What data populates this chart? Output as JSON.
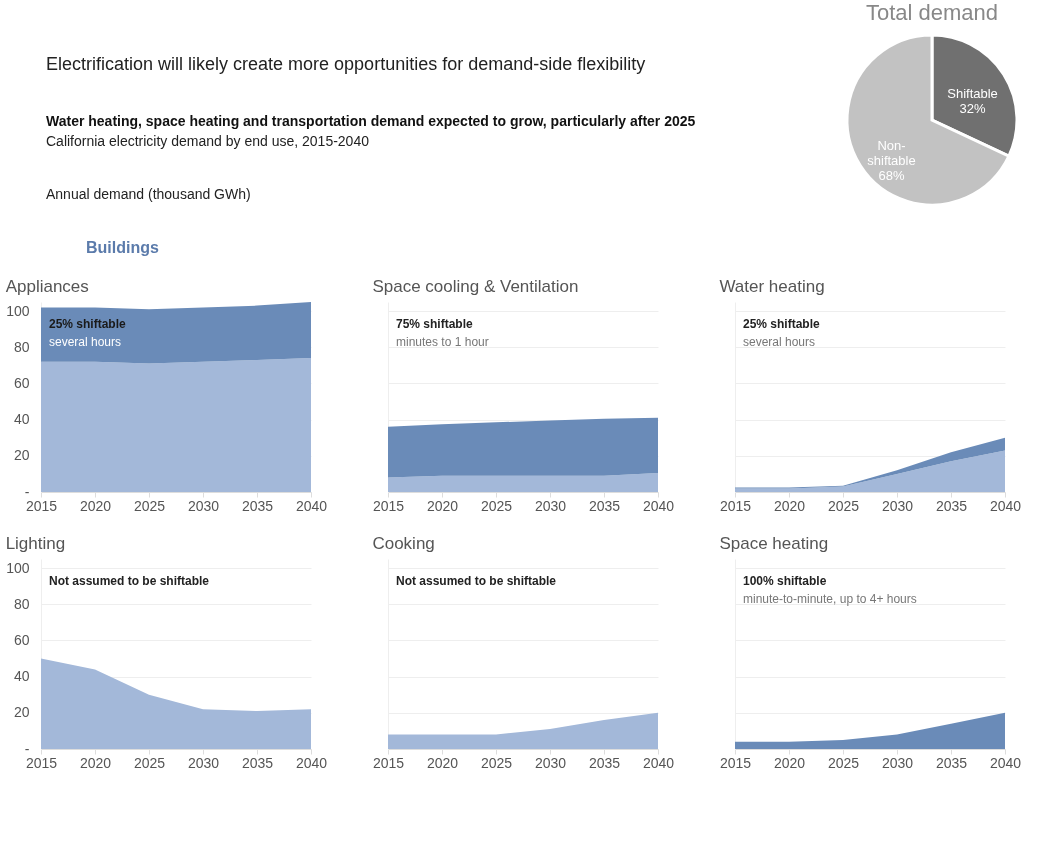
{
  "chart_data": [
    {
      "type": "other",
      "title": "Electrification will likely create more opportunities for demand-side flexibility",
      "annotations": [
        "Water heating, space heating and transportation demand expected to grow, particularly after 2025",
        "California electricity demand by end use, 2015-2040",
        "Annual demand (thousand GWh)",
        "Buildings"
      ]
    },
    {
      "type": "pie",
      "title": "Total demand",
      "categories": [
        "Shiftable",
        "Non-shiftable"
      ],
      "values": [
        32,
        68
      ],
      "colors": [
        "#707070",
        "#c2c2c2"
      ],
      "value_labels": [
        "32%",
        "68%"
      ]
    },
    {
      "type": "area",
      "title": "Appliances",
      "stacked": true,
      "x": [
        2015,
        2020,
        2025,
        2030,
        2035,
        2040
      ],
      "xlim": [
        2015,
        2040
      ],
      "xticks": [
        2015,
        2020,
        2025,
        2030,
        2035,
        2040
      ],
      "ylim": [
        0,
        105
      ],
      "yticks": [
        {
          "value": 0,
          "label": "-"
        },
        20,
        40,
        60,
        80,
        100
      ],
      "grid": "y",
      "annotations": [
        "25% shiftable",
        "several hours"
      ],
      "series": [
        {
          "color": "#a3b8d9",
          "values": [
            72,
            72,
            71,
            72,
            73,
            74
          ]
        },
        {
          "color": "#6a8bb8",
          "values": [
            30,
            30,
            30,
            30,
            30,
            31
          ]
        }
      ]
    },
    {
      "type": "area",
      "title": "Space cooling & Ventilation",
      "stacked": true,
      "x": [
        2015,
        2020,
        2025,
        2030,
        2035,
        2040
      ],
      "xlim": [
        2015,
        2040
      ],
      "xticks": [
        2015,
        2020,
        2025,
        2030,
        2035,
        2040
      ],
      "ylim": [
        0,
        105
      ],
      "yticks": [
        20,
        40,
        60,
        80,
        100
      ],
      "grid": "y",
      "tick_labels": "x",
      "annotations": [
        "75% shiftable",
        "minutes to 1 hour"
      ],
      "series": [
        {
          "color": "#a3b8d9",
          "values": [
            8,
            9,
            9,
            9,
            9,
            10.5
          ]
        },
        {
          "color": "#6a8bb8",
          "values": [
            28,
            28.5,
            29.5,
            30.5,
            31.5,
            30.5
          ]
        }
      ]
    },
    {
      "type": "area",
      "title": "Water heating",
      "stacked": true,
      "x": [
        2015,
        2020,
        2025,
        2030,
        2035,
        2040
      ],
      "xlim": [
        2015,
        2040
      ],
      "xticks": [
        2015,
        2020,
        2025,
        2030,
        2035,
        2040
      ],
      "ylim": [
        0,
        105
      ],
      "yticks": [
        20,
        40,
        60,
        80,
        100
      ],
      "grid": "y",
      "tick_labels": "x",
      "annotations": [
        "25% shiftable",
        "several hours"
      ],
      "series": [
        {
          "color": "#a3b8d9",
          "values": [
            2,
            2,
            3,
            10,
            17,
            23
          ]
        },
        {
          "color": "#6a8bb8",
          "values": [
            0.5,
            0.5,
            0.5,
            2,
            5,
            7
          ]
        }
      ]
    },
    {
      "type": "area",
      "title": "Lighting",
      "stacked": true,
      "x": [
        2015,
        2020,
        2025,
        2030,
        2035,
        2040
      ],
      "xlim": [
        2015,
        2040
      ],
      "xticks": [
        2015,
        2020,
        2025,
        2030,
        2035,
        2040
      ],
      "ylim": [
        0,
        105
      ],
      "yticks": [
        {
          "value": 0,
          "label": "-"
        },
        20,
        40,
        60,
        80,
        100
      ],
      "grid": "y",
      "annotations": [
        "Not assumed to be shiftable"
      ],
      "series": [
        {
          "color": "#a3b8d9",
          "values": [
            50,
            44,
            30,
            22,
            21,
            22
          ]
        }
      ]
    },
    {
      "type": "area",
      "title": "Cooking",
      "stacked": true,
      "x": [
        2015,
        2020,
        2025,
        2030,
        2035,
        2040
      ],
      "xlim": [
        2015,
        2040
      ],
      "xticks": [
        2015,
        2020,
        2025,
        2030,
        2035,
        2040
      ],
      "ylim": [
        0,
        105
      ],
      "yticks": [
        20,
        40,
        60,
        80,
        100
      ],
      "grid": "y",
      "tick_labels": "x",
      "annotations": [
        "Not assumed to be shiftable"
      ],
      "series": [
        {
          "color": "#a3b8d9",
          "values": [
            8,
            8,
            8,
            11,
            16,
            20
          ]
        }
      ]
    },
    {
      "type": "area",
      "title": "Space heating",
      "stacked": true,
      "x": [
        2015,
        2020,
        2025,
        2030,
        2035,
        2040
      ],
      "xlim": [
        2015,
        2040
      ],
      "xticks": [
        2015,
        2020,
        2025,
        2030,
        2035,
        2040
      ],
      "ylim": [
        0,
        105
      ],
      "yticks": [
        20,
        40,
        60,
        80,
        100
      ],
      "grid": "y",
      "tick_labels": "x",
      "annotations": [
        "100% shiftable",
        "minute-to-minute, up to 4+ hours"
      ],
      "series": [
        {
          "color": "#6a8bb8",
          "values": [
            4,
            4,
            5,
            8,
            14,
            20
          ]
        }
      ]
    }
  ]
}
